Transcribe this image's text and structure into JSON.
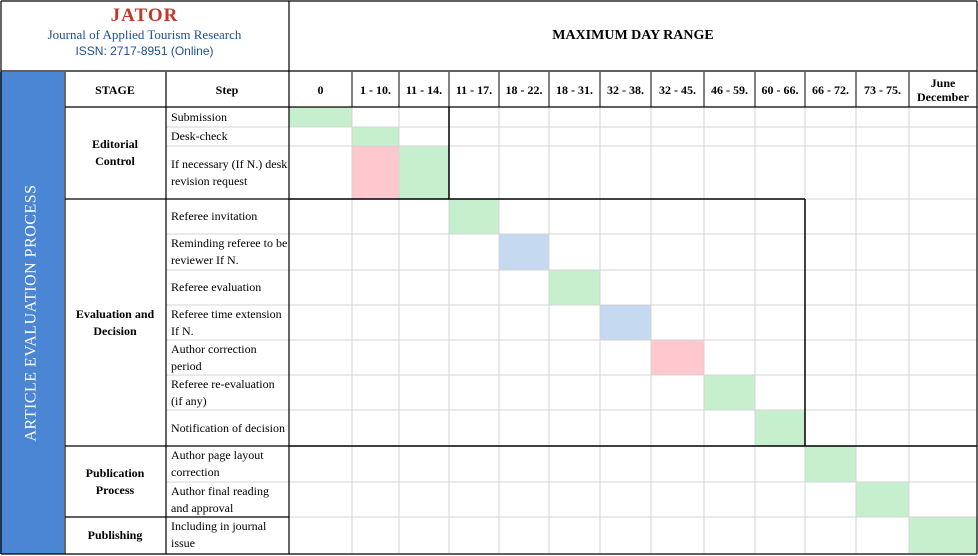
{
  "journal": {
    "name": "JATOR",
    "full_name": "Journal of Applied Tourism Research",
    "issn": "ISSN: 2717-8951 (Online)"
  },
  "title": "MAXIMUM DAY RANGE",
  "sidebar_label": "ARTICLE EVALUATION PROCESS",
  "headers": {
    "stage": "STAGE",
    "step": "Step"
  },
  "day_ranges": [
    "0",
    "1 - 10.",
    "11 - 14.",
    "11 - 17.",
    "18 - 22.",
    "18 - 31.",
    "32 - 38.",
    "32 - 45.",
    "46 - 59.",
    "60 - 66.",
    "66 - 72.",
    "73 - 75.",
    "June December"
  ],
  "stages": [
    "Editorial Control",
    "Evaluation and Decision",
    "Publication Process",
    "Publishing"
  ],
  "steps": [
    {
      "label": "Submission",
      "stage": 0,
      "bars": [
        {
          "col": 0,
          "color": "green"
        }
      ]
    },
    {
      "label": "Desk-check",
      "stage": 0,
      "bars": [
        {
          "col": 1,
          "color": "green"
        }
      ]
    },
    {
      "label": "If necessary (If N.) desk revision request",
      "stage": 0,
      "bars": [
        {
          "col": 1,
          "color": "red"
        },
        {
          "col": 2,
          "color": "green"
        }
      ]
    },
    {
      "label": "Referee invitation",
      "stage": 1,
      "bars": [
        {
          "col": 3,
          "color": "green"
        }
      ]
    },
    {
      "label": "Reminding referee to be reviewer  If N.",
      "stage": 1,
      "bars": [
        {
          "col": 4,
          "color": "blue"
        }
      ]
    },
    {
      "label": "Referee evaluation",
      "stage": 1,
      "bars": [
        {
          "col": 5,
          "color": "green"
        }
      ]
    },
    {
      "label": "Referee time extension If N.",
      "stage": 1,
      "bars": [
        {
          "col": 6,
          "color": "blue"
        }
      ]
    },
    {
      "label": "Author correction period",
      "stage": 1,
      "bars": [
        {
          "col": 7,
          "color": "red"
        }
      ]
    },
    {
      "label": "Referee re-evaluation (if any)",
      "stage": 1,
      "bars": [
        {
          "col": 8,
          "color": "green"
        }
      ]
    },
    {
      "label": "Notification of decision",
      "stage": 1,
      "bars": [
        {
          "col": 9,
          "color": "green"
        }
      ]
    },
    {
      "label": "Author page layout correction",
      "stage": 2,
      "bars": [
        {
          "col": 10,
          "color": "green"
        }
      ]
    },
    {
      "label": "Author final reading and approval",
      "stage": 2,
      "bars": [
        {
          "col": 11,
          "color": "green"
        }
      ]
    },
    {
      "label": "Including in journal issue",
      "stage": 3,
      "bars": [
        {
          "col": 12,
          "color": "green"
        }
      ]
    }
  ],
  "colors": {
    "green": "#c6efce",
    "red": "#ffc7ce",
    "blue": "#c5d9f1",
    "sidebar": "#4a86d4",
    "journal_name": "#c0392b",
    "journal_text": "#1f4e9c"
  }
}
